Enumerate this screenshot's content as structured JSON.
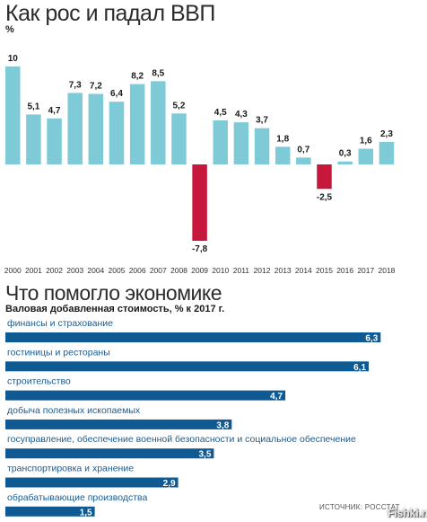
{
  "header": {
    "title": "Как рос и падал ВВП",
    "unit": "%"
  },
  "section2": {
    "title": "Что помогло экономике",
    "subtitle": "Валовая добавленная стоимость, % к 2017 г."
  },
  "source": "ИСТОЧНИК: РОССТАТ",
  "watermark": "Fishki.net",
  "colors": {
    "positive": "#7ecad6",
    "negative": "#c8173d",
    "bar2": "#0f5a93",
    "label2": "#1b5b8f"
  },
  "chart_data": [
    {
      "type": "bar",
      "title": "Как рос и падал ВВП",
      "ylabel": "%",
      "categories": [
        "2000",
        "2001",
        "2002",
        "2003",
        "2004",
        "2005",
        "2006",
        "2007",
        "2008",
        "2009",
        "2010",
        "2011",
        "2012",
        "2013",
        "2014",
        "2015",
        "2016",
        "2017",
        "2018"
      ],
      "values": [
        10,
        5.1,
        4.7,
        7.3,
        7.2,
        6.4,
        8.2,
        8.5,
        5.2,
        -7.8,
        4.5,
        4.3,
        3.7,
        1.8,
        0.7,
        -2.5,
        0.3,
        1.6,
        2.3
      ],
      "value_labels": [
        "10",
        "5,1",
        "4,7",
        "7,3",
        "7,2",
        "6,4",
        "8,2",
        "8,5",
        "5,2",
        "-7,8",
        "4,5",
        "4,3",
        "3,7",
        "1,8",
        "0,7",
        "-2,5",
        "0,3",
        "1,6",
        "2,3"
      ],
      "ylim": [
        -7.8,
        10
      ],
      "grid": false
    },
    {
      "type": "bar",
      "orientation": "horizontal",
      "title": "Что помогло экономике",
      "subtitle": "Валовая добавленная стоимость, % к 2017 г.",
      "categories": [
        "финансы и страхование",
        "гостиницы и рестораны",
        "строительство",
        "добыча полезных ископаемых",
        "госуправление, обеспечение военной безопасности и социальное обеспечение",
        "транспортировка и хранение",
        "обрабатывающие производства"
      ],
      "values": [
        6.3,
        6.1,
        4.7,
        3.8,
        3.5,
        2.9,
        1.5
      ],
      "value_labels": [
        "6,3",
        "6,1",
        "4,7",
        "3,8",
        "3,5",
        "2,9",
        "1,5"
      ],
      "grid": false
    }
  ]
}
